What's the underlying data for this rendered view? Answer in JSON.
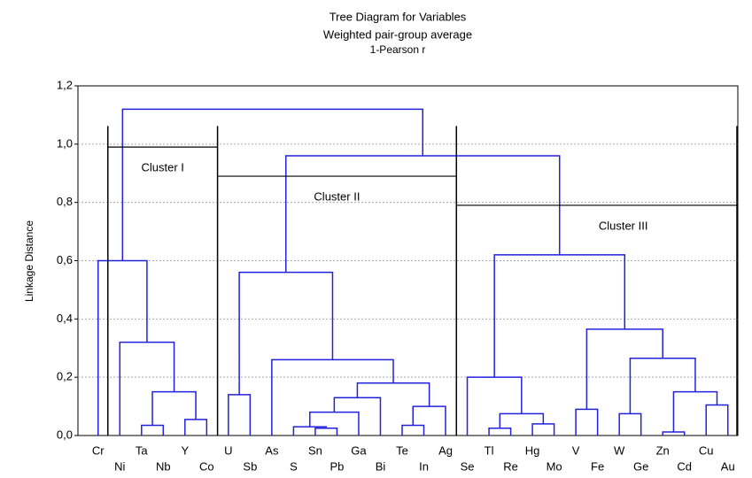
{
  "chart_data": {
    "type": "dendrogram",
    "title": "Tree Diagram for  Variables",
    "subtitle": "Weighted pair-group average",
    "subtitle2": "1-Pearson r",
    "y_label": "Linkage Distance",
    "color": "#2222dd",
    "grid": true,
    "ylim": [
      0,
      1.2
    ],
    "yticks": [
      {
        "value": 0,
        "label": "0,0"
      },
      {
        "value": 0.2,
        "label": "0,2"
      },
      {
        "value": 0.4,
        "label": "0,4"
      },
      {
        "value": 0.6,
        "label": "0,6"
      },
      {
        "value": 0.8,
        "label": "0,8"
      },
      {
        "value": 1.0,
        "label": "1,0"
      },
      {
        "value": 1.2,
        "label": "1,2"
      }
    ],
    "leaves": [
      "Cr",
      "Ni",
      "Ta",
      "Nb",
      "Y",
      "Co",
      "U",
      "Sb",
      "As",
      "S",
      "Sn",
      "Pb",
      "Ga",
      "Bi",
      "Te",
      "In",
      "Ag",
      "Se",
      "Tl",
      "Re",
      "Hg",
      "Mo",
      "V",
      "Fe",
      "W",
      "Ge",
      "Zn",
      "Cd",
      "Cu",
      "Au"
    ],
    "merges": [
      {
        "left": 2,
        "right": 3,
        "height": 0.035
      },
      {
        "left": 4,
        "right": 5,
        "height": 0.055
      },
      {
        "left": 30,
        "right": 31,
        "height": 0.15
      },
      {
        "left": 1,
        "right": 32,
        "height": 0.32
      },
      {
        "left": 0,
        "right": 33,
        "height": 0.6
      },
      {
        "left": 6,
        "right": 7,
        "height": 0.14
      },
      {
        "left": 10,
        "right": 11,
        "height": 0.025
      },
      {
        "left": 9,
        "right": 36,
        "height": 0.03
      },
      {
        "left": 37,
        "right": 12,
        "height": 0.08
      },
      {
        "left": 38,
        "right": 13,
        "height": 0.13
      },
      {
        "left": 14,
        "right": 15,
        "height": 0.035
      },
      {
        "left": 40,
        "right": 16,
        "height": 0.1
      },
      {
        "left": 39,
        "right": 41,
        "height": 0.18
      },
      {
        "left": 8,
        "right": 42,
        "height": 0.26
      },
      {
        "left": 35,
        "right": 43,
        "height": 0.56
      },
      {
        "left": 18,
        "right": 19,
        "height": 0.025
      },
      {
        "left": 20,
        "right": 21,
        "height": 0.04
      },
      {
        "left": 45,
        "right": 46,
        "height": 0.075
      },
      {
        "left": 17,
        "right": 47,
        "height": 0.2
      },
      {
        "left": 22,
        "right": 23,
        "height": 0.09
      },
      {
        "left": 24,
        "right": 25,
        "height": 0.075
      },
      {
        "left": 26,
        "right": 27,
        "height": 0.012
      },
      {
        "left": 28,
        "right": 29,
        "height": 0.105
      },
      {
        "left": 51,
        "right": 52,
        "height": 0.15
      },
      {
        "left": 50,
        "right": 53,
        "height": 0.265
      },
      {
        "left": 49,
        "right": 54,
        "height": 0.365
      },
      {
        "left": 48,
        "right": 55,
        "height": 0.62
      },
      {
        "left": 44,
        "right": 56,
        "height": 0.96
      },
      {
        "left": 34,
        "right": 57,
        "height": 1.12
      }
    ],
    "clusters": [
      {
        "label": "Cluster I",
        "first_leaf": 0,
        "last_leaf": 5,
        "height": 0.99
      },
      {
        "label": "Cluster II",
        "first_leaf": 6,
        "last_leaf": 16,
        "height": 0.89
      },
      {
        "label": "Cluster III",
        "first_leaf": 17,
        "last_leaf": 29,
        "height": 0.79
      }
    ]
  }
}
